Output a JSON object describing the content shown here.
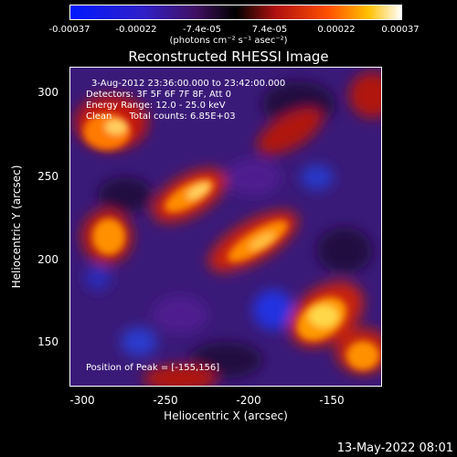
{
  "colorbar": {
    "ticks": [
      "-0.00037",
      "-0.00022",
      "-7.4e-05",
      "7.4e-05",
      "0.00022",
      "0.00037"
    ],
    "units": "(photons cm⁻² s⁻¹ asec⁻²)"
  },
  "title": "Reconstructed RHESSI Image",
  "info": {
    "line1": "3-Aug-2012 23:36:00.000 to 23:42:00.000",
    "line2": "Detectors: 3F 5F 6F 7F 8F, Att 0",
    "line3": "Energy Range: 12.0 - 25.0 keV",
    "line4": "Clean      Total counts: 6.85E+03",
    "peak": "Position of Peak = [-155,156]"
  },
  "axes": {
    "xlabel": "Heliocentric X (arcsec)",
    "ylabel": "Heliocentric Y (arcsec)",
    "xticks": [
      "-300",
      "-250",
      "-200",
      "-150"
    ],
    "yticks": [
      "300",
      "250",
      "200",
      "150"
    ]
  },
  "footer": "13-May-2022 08:01"
}
